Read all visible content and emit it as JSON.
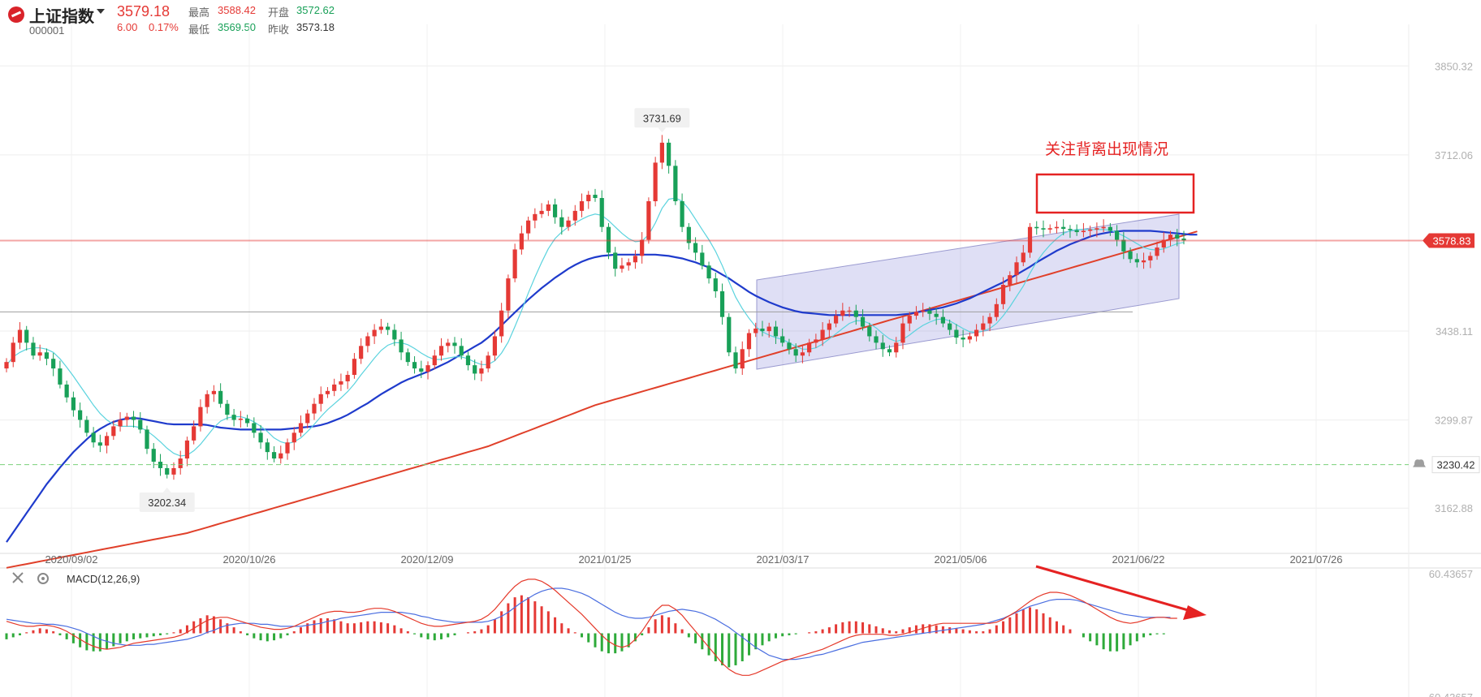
{
  "header": {
    "name": "上证指数",
    "code": "000001",
    "price": "3579.18",
    "change": "6.00",
    "change_pct": "0.17%",
    "high_label": "最高",
    "high": "3588.42",
    "open_label": "开盘",
    "open": "3572.62",
    "low_label": "最低",
    "low": "3569.50",
    "prev_label": "昨收",
    "prev_close": "3573.18"
  },
  "chart_data": {
    "type": "candlestick",
    "y_ticks": [
      "3850.32",
      "3712.06",
      "3438.11",
      "3299.87",
      "3162.88"
    ],
    "y_tick_values": [
      3850.32,
      3712.06,
      3438.11,
      3299.87,
      3162.88
    ],
    "ylim": [
      3095,
      3915
    ],
    "x_ticks": [
      "2020/09/02",
      "2020/10/26",
      "2020/12/09",
      "2021/01/25",
      "2021/03/17",
      "2021/05/06",
      "2021/06/22",
      "2021/07/26"
    ],
    "current_price_tag": "3578.83",
    "current_price": 3578.83,
    "alert_line_value": "3230.42",
    "alert_line": 3230.42,
    "peak_label": "3731.69",
    "peak_value": 3731.69,
    "trough_label": "3202.34",
    "trough_value": 3202.34,
    "resistance_level": 3468,
    "annotation": "关注背离出现情况",
    "close": [
      3390,
      3420,
      3440,
      3420,
      3400,
      3405,
      3395,
      3380,
      3355,
      3335,
      3315,
      3300,
      3280,
      3265,
      3260,
      3275,
      3290,
      3300,
      3305,
      3300,
      3285,
      3255,
      3235,
      3225,
      3215,
      3225,
      3240,
      3268,
      3290,
      3320,
      3340,
      3345,
      3325,
      3308,
      3300,
      3302,
      3295,
      3280,
      3265,
      3250,
      3240,
      3248,
      3265,
      3280,
      3295,
      3310,
      3325,
      3340,
      3345,
      3355,
      3360,
      3370,
      3395,
      3415,
      3430,
      3440,
      3445,
      3440,
      3425,
      3405,
      3390,
      3380,
      3375,
      3385,
      3400,
      3415,
      3420,
      3415,
      3400,
      3385,
      3372,
      3380,
      3400,
      3430,
      3470,
      3520,
      3565,
      3590,
      3610,
      3620,
      3625,
      3635,
      3615,
      3600,
      3610,
      3625,
      3640,
      3650,
      3645,
      3600,
      3560,
      3535,
      3540,
      3545,
      3555,
      3580,
      3640,
      3700,
      3731,
      3695,
      3640,
      3600,
      3575,
      3560,
      3540,
      3520,
      3500,
      3460,
      3405,
      3380,
      3410,
      3435,
      3442,
      3438,
      3445,
      3430,
      3420,
      3410,
      3400,
      3405,
      3420,
      3425,
      3440,
      3450,
      3462,
      3470,
      3470,
      3460,
      3445,
      3430,
      3420,
      3410,
      3405,
      3420,
      3450,
      3462,
      3468,
      3470,
      3465,
      3460,
      3450,
      3440,
      3428,
      3425,
      3430,
      3440,
      3450,
      3460,
      3480,
      3510,
      3525,
      3545,
      3560,
      3600,
      3598,
      3596,
      3598,
      3600,
      3597,
      3595,
      3592,
      3594,
      3596,
      3598,
      3600,
      3594,
      3580,
      3562,
      3550,
      3545,
      3548,
      3555,
      3568,
      3580,
      3588,
      3582,
      3579
    ],
    "ma_fast": [
      3385,
      3398,
      3405,
      3410,
      3412,
      3412,
      3410,
      3405,
      3395,
      3382,
      3368,
      3353,
      3338,
      3323,
      3310,
      3300,
      3293,
      3290,
      3290,
      3290,
      3288,
      3283,
      3275,
      3266,
      3256,
      3248,
      3244,
      3245,
      3252,
      3262,
      3275,
      3288,
      3298,
      3303,
      3305,
      3305,
      3302,
      3297,
      3290,
      3282,
      3272,
      3266,
      3263,
      3266,
      3272,
      3282,
      3293,
      3305,
      3316,
      3325,
      3334,
      3344,
      3356,
      3370,
      3383,
      3396,
      3408,
      3416,
      3420,
      3420,
      3417,
      3411,
      3404,
      3398,
      3394,
      3394,
      3396,
      3398,
      3398,
      3395,
      3390,
      3386,
      3386,
      3392,
      3404,
      3421,
      3445,
      3470,
      3497,
      3522,
      3545,
      3566,
      3582,
      3592,
      3600,
      3606,
      3612,
      3617,
      3620,
      3618,
      3610,
      3600,
      3590,
      3582,
      3577,
      3578,
      3588,
      3606,
      3629,
      3643,
      3645,
      3640,
      3628,
      3612,
      3596,
      3580,
      3562,
      3540,
      3515,
      3491,
      3473,
      3458,
      3445,
      3437,
      3432,
      3428,
      3425,
      3420,
      3414,
      3410,
      3410,
      3412,
      3418,
      3426,
      3434,
      3442,
      3450,
      3454,
      3454,
      3450,
      3443,
      3434,
      3426,
      3422,
      3425,
      3432,
      3440,
      3447,
      3452,
      3456,
      3457,
      3454,
      3448,
      3442,
      3437,
      3436,
      3438,
      3442,
      3450,
      3462,
      3476,
      3492,
      3508,
      3528,
      3546,
      3560,
      3572,
      3582,
      3590,
      3594,
      3596,
      3596,
      3596,
      3596,
      3596,
      3595,
      3591,
      3586,
      3580,
      3574,
      3568,
      3565,
      3564,
      3566,
      3570,
      3574,
      3576
    ],
    "ma_mid": [
      3110,
      3125,
      3140,
      3155,
      3170,
      3185,
      3200,
      3213,
      3226,
      3238,
      3250,
      3260,
      3270,
      3279,
      3286,
      3292,
      3297,
      3300,
      3302,
      3303,
      3302,
      3300,
      3298,
      3296,
      3294,
      3293,
      3293,
      3293,
      3293,
      3293,
      3292,
      3290,
      3288,
      3287,
      3286,
      3285,
      3285,
      3285,
      3285,
      3285,
      3285,
      3285,
      3286,
      3287,
      3288,
      3289,
      3290,
      3292,
      3295,
      3299,
      3303,
      3308,
      3314,
      3320,
      3326,
      3333,
      3340,
      3346,
      3352,
      3358,
      3363,
      3367,
      3371,
      3375,
      3380,
      3385,
      3390,
      3396,
      3402,
      3408,
      3414,
      3420,
      3428,
      3437,
      3447,
      3457,
      3467,
      3477,
      3487,
      3496,
      3505,
      3513,
      3521,
      3528,
      3535,
      3541,
      3546,
      3550,
      3553,
      3555,
      3556,
      3557,
      3557,
      3557,
      3557,
      3557,
      3557,
      3557,
      3556,
      3555,
      3553,
      3551,
      3548,
      3545,
      3541,
      3537,
      3532,
      3526,
      3520,
      3513,
      3506,
      3499,
      3493,
      3488,
      3483,
      3479,
      3475,
      3472,
      3469,
      3467,
      3466,
      3465,
      3464,
      3463,
      3463,
      3463,
      3463,
      3463,
      3463,
      3463,
      3463,
      3463,
      3463,
      3463,
      3464,
      3465,
      3467,
      3469,
      3471,
      3473,
      3475,
      3478,
      3481,
      3485,
      3489,
      3494,
      3499,
      3504,
      3509,
      3514,
      3520,
      3526,
      3532,
      3538,
      3545,
      3551,
      3557,
      3563,
      3568,
      3573,
      3577,
      3581,
      3585,
      3588,
      3590,
      3592,
      3593,
      3594,
      3594,
      3594,
      3594,
      3594,
      3593,
      3592,
      3591,
      3590,
      3589,
      3588,
      3588
    ],
    "ma_slow": [
      3070,
      3072,
      3074,
      3076,
      3078,
      3080,
      3082,
      3084,
      3086,
      3088,
      3090,
      3092,
      3094,
      3096,
      3098,
      3100,
      3102,
      3104,
      3106,
      3108,
      3110,
      3112,
      3114,
      3116,
      3118,
      3120,
      3122,
      3124,
      3127,
      3130,
      3133,
      3136,
      3139,
      3142,
      3145,
      3148,
      3151,
      3154,
      3157,
      3160,
      3163,
      3166,
      3169,
      3172,
      3175,
      3178,
      3181,
      3184,
      3187,
      3190,
      3193,
      3196,
      3199,
      3202,
      3205,
      3208,
      3211,
      3214,
      3217,
      3220,
      3223,
      3226,
      3229,
      3232,
      3235,
      3238,
      3241,
      3244,
      3247,
      3250,
      3253,
      3256,
      3259,
      3263,
      3267,
      3271,
      3275,
      3279,
      3283,
      3287,
      3291,
      3295,
      3299,
      3303,
      3307,
      3311,
      3315,
      3319,
      3323,
      3326,
      3329,
      3332,
      3335,
      3338,
      3341,
      3344,
      3347,
      3350,
      3353,
      3356,
      3359,
      3362,
      3365,
      3368,
      3371,
      3374,
      3377,
      3380,
      3383,
      3386,
      3389,
      3392,
      3395,
      3398,
      3401,
      3404,
      3407,
      3410,
      3413,
      3416,
      3419,
      3422,
      3425,
      3428,
      3431,
      3434,
      3437,
      3440,
      3443,
      3446,
      3449,
      3452,
      3455,
      3458,
      3461,
      3464,
      3467,
      3470,
      3473,
      3476,
      3479,
      3482,
      3485,
      3488,
      3491,
      3494,
      3497,
      3500,
      3503,
      3506,
      3509,
      3512,
      3515,
      3518,
      3521,
      3524,
      3527,
      3530,
      3533,
      3536,
      3539,
      3542,
      3545,
      3548,
      3551,
      3554,
      3557,
      3560,
      3563,
      3566,
      3569,
      3572,
      3575,
      3578,
      3581,
      3584,
      3587,
      3590,
      3593
    ],
    "macd_label": "MACD(12,26,9)",
    "macd_ticks": [
      "60.43657",
      "-60.43657"
    ],
    "macd_range": [
      -60.43657,
      60.43657
    ],
    "macd_hist": [
      -6,
      -4,
      -2,
      1,
      3,
      5,
      4,
      2,
      -2,
      -6,
      -10,
      -14,
      -17,
      -18,
      -18,
      -16,
      -13,
      -10,
      -8,
      -6,
      -5,
      -4,
      -3,
      -2,
      -1,
      1,
      4,
      8,
      12,
      15,
      18,
      17,
      14,
      10,
      6,
      2,
      -2,
      -5,
      -7,
      -8,
      -7,
      -5,
      -2,
      2,
      6,
      10,
      13,
      15,
      15,
      14,
      12,
      10,
      10,
      11,
      12,
      12,
      11,
      10,
      8,
      5,
      2,
      -1,
      -4,
      -6,
      -7,
      -6,
      -4,
      -2,
      0,
      1,
      2,
      4,
      8,
      14,
      22,
      30,
      36,
      38,
      36,
      32,
      27,
      22,
      16,
      10,
      5,
      1,
      -4,
      -9,
      -14,
      -18,
      -20,
      -20,
      -18,
      -14,
      -8,
      -2,
      6,
      14,
      18,
      16,
      10,
      4,
      -4,
      -10,
      -16,
      -22,
      -28,
      -32,
      -34,
      -32,
      -28,
      -22,
      -16,
      -12,
      -8,
      -5,
      -3,
      -2,
      -1,
      0,
      1,
      2,
      4,
      6,
      9,
      11,
      12,
      12,
      11,
      9,
      7,
      5,
      3,
      2,
      4,
      6,
      8,
      9,
      9,
      8,
      7,
      6,
      5,
      4,
      3,
      2,
      2,
      4,
      8,
      12,
      16,
      20,
      24,
      26,
      24,
      20,
      16,
      12,
      8,
      4,
      0,
      -4,
      -8,
      -12,
      -16,
      -18,
      -18,
      -16,
      -12,
      -8,
      -4,
      -2,
      -1,
      -1
    ],
    "macd_line": [
      12,
      10,
      8,
      7,
      7,
      8,
      8,
      7,
      5,
      2,
      -2,
      -6,
      -10,
      -13,
      -15,
      -16,
      -15,
      -14,
      -12,
      -10,
      -9,
      -8,
      -7,
      -6,
      -5,
      -4,
      -2,
      1,
      5,
      9,
      13,
      15,
      16,
      16,
      14,
      12,
      10,
      8,
      6,
      5,
      4,
      4,
      5,
      7,
      10,
      13,
      16,
      19,
      21,
      22,
      22,
      21,
      21,
      22,
      24,
      25,
      25,
      24,
      22,
      19,
      16,
      13,
      10,
      8,
      7,
      7,
      8,
      9,
      10,
      11,
      12,
      14,
      18,
      24,
      32,
      40,
      47,
      52,
      54,
      54,
      52,
      48,
      43,
      37,
      31,
      25,
      19,
      12,
      5,
      -2,
      -8,
      -12,
      -14,
      -12,
      -6,
      2,
      12,
      22,
      28,
      28,
      24,
      18,
      10,
      2,
      -6,
      -14,
      -22,
      -30,
      -36,
      -40,
      -42,
      -42,
      -40,
      -37,
      -34,
      -31,
      -28,
      -26,
      -24,
      -22,
      -20,
      -18,
      -16,
      -13,
      -10,
      -7,
      -4,
      -2,
      -1,
      -1,
      -1,
      -1,
      -2,
      -2,
      -1,
      1,
      3,
      5,
      7,
      9,
      10,
      10,
      10,
      10,
      10,
      10,
      10,
      10,
      11,
      14,
      18,
      22,
      27,
      32,
      36,
      39,
      41,
      41,
      40,
      38,
      35,
      32,
      28,
      24,
      20,
      16,
      13,
      11,
      10,
      11,
      13,
      15,
      16,
      16,
      15,
      15
    ],
    "macd_signal": [
      14,
      13,
      12,
      11,
      10,
      10,
      9,
      9,
      8,
      7,
      5,
      3,
      0,
      -3,
      -6,
      -8,
      -10,
      -11,
      -12,
      -12,
      -12,
      -11,
      -11,
      -10,
      -9,
      -8,
      -7,
      -6,
      -4,
      -2,
      1,
      3,
      6,
      8,
      9,
      10,
      10,
      10,
      9,
      9,
      8,
      7,
      7,
      7,
      7,
      8,
      9,
      10,
      12,
      13,
      15,
      16,
      17,
      18,
      19,
      20,
      21,
      21,
      21,
      21,
      20,
      19,
      17,
      16,
      14,
      13,
      12,
      11,
      11,
      11,
      11,
      11,
      12,
      14,
      17,
      21,
      26,
      31,
      35,
      39,
      42,
      44,
      45,
      45,
      44,
      42,
      40,
      37,
      33,
      29,
      25,
      21,
      18,
      16,
      15,
      15,
      16,
      18,
      20,
      22,
      23,
      24,
      23,
      22,
      20,
      17,
      14,
      10,
      6,
      1,
      -4,
      -9,
      -14,
      -18,
      -22,
      -24,
      -26,
      -26,
      -26,
      -25,
      -24,
      -22,
      -21,
      -19,
      -17,
      -15,
      -13,
      -11,
      -9,
      -8,
      -7,
      -6,
      -5,
      -4,
      -3,
      -2,
      -1,
      0,
      1,
      2,
      3,
      4,
      5,
      6,
      7,
      8,
      9,
      11,
      13,
      15,
      18,
      21,
      24,
      27,
      29,
      31,
      33,
      34,
      34,
      34,
      33,
      31,
      29,
      27,
      25,
      23,
      21,
      19,
      18,
      17,
      16,
      16,
      16,
      16,
      16
    ]
  }
}
